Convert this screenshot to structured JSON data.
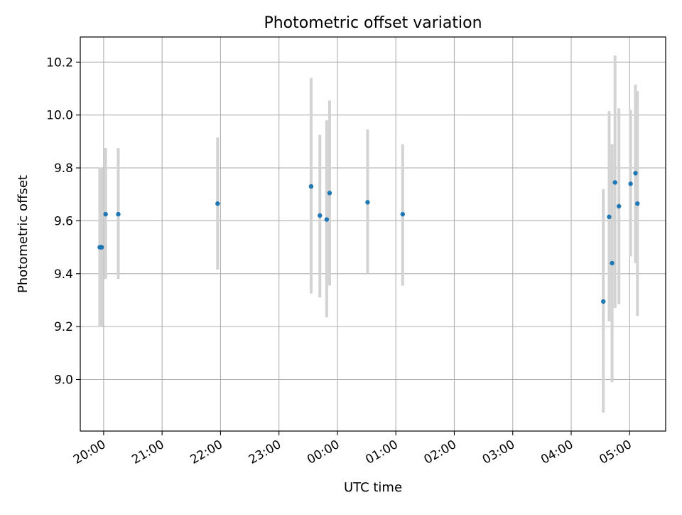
{
  "chart_data": {
    "type": "scatter",
    "title": "Photometric offset variation",
    "xlabel": "UTC time",
    "ylabel": "Photometric offset",
    "xlim": [
      "19:36",
      "05:37"
    ],
    "ylim": [
      8.805,
      10.295
    ],
    "x_ticks": [
      "20:00",
      "21:00",
      "22:00",
      "23:00",
      "00:00",
      "01:00",
      "02:00",
      "03:00",
      "04:00",
      "05:00"
    ],
    "y_ticks": [
      "9.0",
      "9.2",
      "9.4",
      "9.6",
      "9.8",
      "10.0",
      "10.2"
    ],
    "grid": true,
    "legend": "none",
    "point_color": "#1f77b4",
    "errorbar_color": "#d3d3d3",
    "points": [
      {
        "x": "19:56",
        "y": 9.5,
        "err_low": 9.2,
        "err_high": 9.8
      },
      {
        "x": "19:57",
        "y": 9.5,
        "err_low": 9.2,
        "err_high": 9.8
      },
      {
        "x": "19:58",
        "y": 9.5,
        "err_low": 9.2,
        "err_high": 9.8
      },
      {
        "x": "20:02",
        "y": 9.625,
        "err_low": 9.38,
        "err_high": 9.875
      },
      {
        "x": "20:15",
        "y": 9.625,
        "err_low": 9.38,
        "err_high": 9.875
      },
      {
        "x": "21:57",
        "y": 9.665,
        "err_low": 9.415,
        "err_high": 9.915
      },
      {
        "x": "23:33",
        "y": 9.73,
        "err_low": 9.325,
        "err_high": 10.14
      },
      {
        "x": "23:42",
        "y": 9.62,
        "err_low": 9.31,
        "err_high": 9.925
      },
      {
        "x": "23:49",
        "y": 9.605,
        "err_low": 9.235,
        "err_high": 9.98
      },
      {
        "x": "23:52",
        "y": 9.705,
        "err_low": 9.355,
        "err_high": 10.055
      },
      {
        "x": "00:31",
        "y": 9.67,
        "err_low": 9.4,
        "err_high": 9.945
      },
      {
        "x": "01:07",
        "y": 9.625,
        "err_low": 9.355,
        "err_high": 9.89
      },
      {
        "x": "04:33",
        "y": 9.295,
        "err_low": 8.875,
        "err_high": 9.72
      },
      {
        "x": "04:39",
        "y": 9.615,
        "err_low": 9.22,
        "err_high": 10.015
      },
      {
        "x": "04:42",
        "y": 9.44,
        "err_low": 8.99,
        "err_high": 9.89
      },
      {
        "x": "04:45",
        "y": 9.745,
        "err_low": 9.27,
        "err_high": 10.225
      },
      {
        "x": "04:49",
        "y": 9.655,
        "err_low": 9.285,
        "err_high": 10.025
      },
      {
        "x": "05:01",
        "y": 9.74,
        "err_low": 9.465,
        "err_high": 10.02
      },
      {
        "x": "05:06",
        "y": 9.78,
        "err_low": 9.44,
        "err_high": 10.115
      },
      {
        "x": "05:08",
        "y": 9.665,
        "err_low": 9.24,
        "err_high": 10.09
      }
    ]
  }
}
